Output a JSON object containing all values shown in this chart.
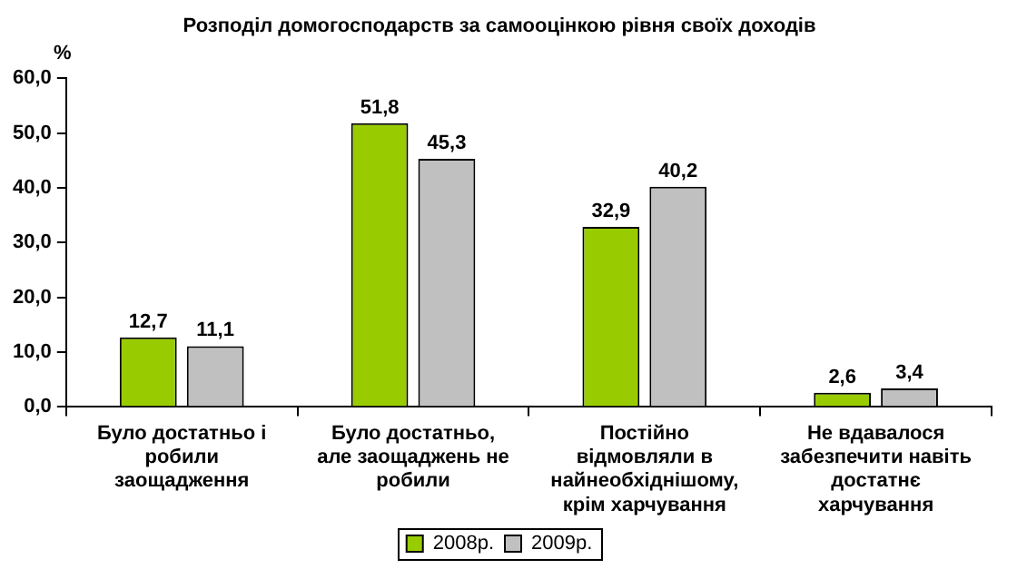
{
  "chart_data": {
    "type": "bar",
    "title": "Розподіл домогосподарств за самооцінкою рівня своїх доходів",
    "ylabel": "%",
    "categories": [
      "Було достатньо і робили заощадження",
      "Було достатньо, але заощаджень не робили",
      "Постійно відмовляли в найнеобхіднішому, крім харчування",
      "Не вдавалося забезпечити навіть достатнє харчування"
    ],
    "series": [
      {
        "name": "2008р.",
        "color": "#99cc00",
        "values": [
          12.7,
          51.8,
          32.9,
          2.6
        ]
      },
      {
        "name": "2009р.",
        "color": "#c0c0c0",
        "values": [
          11.1,
          45.3,
          40.2,
          3.4
        ]
      }
    ],
    "value_labels": [
      [
        "12,7",
        "51,8",
        "32,9",
        "2,6"
      ],
      [
        "11,1",
        "45,3",
        "40,2",
        "3,4"
      ]
    ],
    "ylim": [
      0,
      60
    ],
    "yticks": [
      {
        "value": 0,
        "label": "0,0"
      },
      {
        "value": 10,
        "label": "10,0"
      },
      {
        "value": 20,
        "label": "20,0"
      },
      {
        "value": 30,
        "label": "30,0"
      },
      {
        "value": 40,
        "label": "40,0"
      },
      {
        "value": 50,
        "label": "50,0"
      },
      {
        "value": 60,
        "label": "60,0"
      }
    ],
    "grid": false,
    "legend": "bottom"
  }
}
